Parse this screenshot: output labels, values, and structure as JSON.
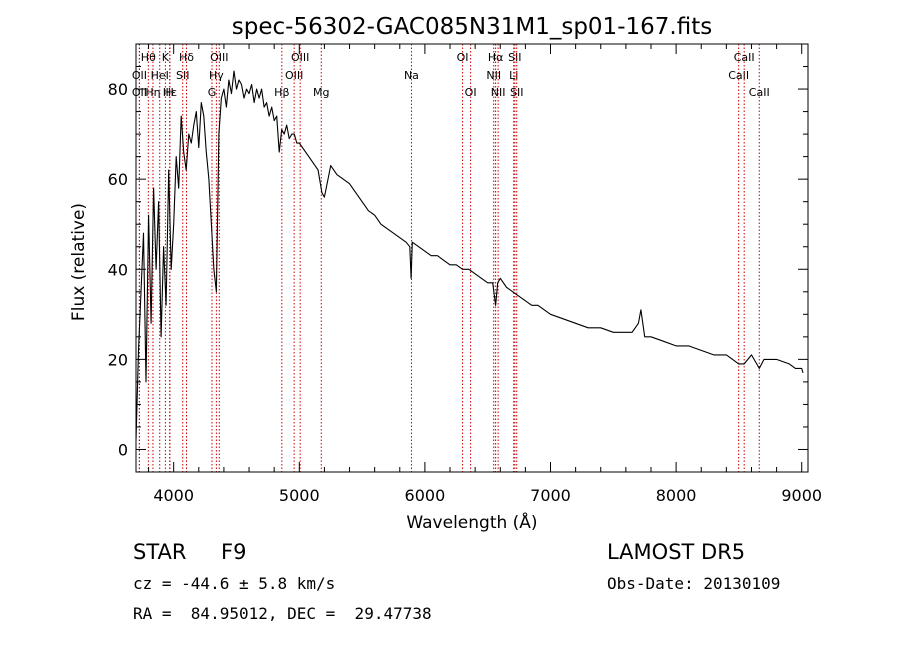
{
  "chart_data": {
    "type": "line",
    "title": "spec-56302-GAC085N31M1_sp01-167.fits",
    "xlabel": "Wavelength (Å)",
    "ylabel": "Flux (relative)",
    "xlim": [
      3700,
      9050
    ],
    "ylim": [
      -5,
      90
    ],
    "xticks": [
      4000,
      5000,
      6000,
      7000,
      8000,
      9000
    ],
    "yticks": [
      0,
      20,
      40,
      60,
      80
    ],
    "grid": false,
    "line_color": "#000000",
    "marker_color": "#cc0000",
    "series": [
      {
        "x": [
          3700,
          3720,
          3740,
          3760,
          3780,
          3800,
          3820,
          3840,
          3860,
          3880,
          3900,
          3920,
          3940,
          3960,
          3980,
          4000,
          4020,
          4040,
          4060,
          4080,
          4100,
          4120,
          4140,
          4160,
          4180,
          4200,
          4220,
          4240,
          4260,
          4280,
          4300,
          4320,
          4340,
          4360,
          4380,
          4400,
          4420,
          4440,
          4460,
          4480,
          4500,
          4520,
          4540,
          4560,
          4580,
          4600,
          4620,
          4640,
          4660,
          4680,
          4700,
          4720,
          4740,
          4760,
          4780,
          4800,
          4820,
          4840,
          4860,
          4880,
          4900,
          4920,
          4940,
          4960,
          4980,
          5000,
          5050,
          5100,
          5150,
          5180,
          5200,
          5250,
          5300,
          5350,
          5400,
          5450,
          5500,
          5550,
          5600,
          5650,
          5700,
          5750,
          5800,
          5850,
          5880,
          5890,
          5900,
          5950,
          6000,
          6050,
          6100,
          6150,
          6200,
          6250,
          6300,
          6350,
          6400,
          6450,
          6500,
          6540,
          6563,
          6580,
          6600,
          6650,
          6700,
          6750,
          6800,
          6850,
          6900,
          6950,
          7000,
          7100,
          7200,
          7300,
          7400,
          7500,
          7600,
          7650,
          7700,
          7720,
          7750,
          7800,
          7900,
          8000,
          8100,
          8200,
          8300,
          8400,
          8450,
          8498,
          8542,
          8600,
          8662,
          8700,
          8800,
          8900,
          8950,
          9000,
          9010
        ],
        "values": [
          2,
          22,
          35,
          48,
          15,
          52,
          28,
          58,
          40,
          55,
          25,
          45,
          32,
          62,
          40,
          50,
          65,
          58,
          74,
          66,
          62,
          70,
          68,
          72,
          75,
          67,
          77,
          74,
          66,
          60,
          50,
          40,
          35,
          70,
          78,
          80,
          76,
          82,
          79,
          84,
          80,
          82,
          81,
          78,
          80,
          79,
          81,
          77,
          80,
          78,
          80,
          76,
          77,
          74,
          76,
          73,
          74,
          66,
          71,
          70,
          72,
          69,
          70,
          70,
          68,
          68,
          66,
          64,
          62,
          57,
          56,
          63,
          61,
          60,
          59,
          57,
          55,
          53,
          52,
          50,
          49,
          48,
          47,
          46,
          45,
          38,
          46,
          45,
          44,
          43,
          43,
          42,
          41,
          41,
          40,
          40,
          39,
          38,
          37,
          37,
          32,
          37,
          38,
          36,
          35,
          34,
          33,
          32,
          32,
          31,
          30,
          29,
          28,
          27,
          27,
          26,
          26,
          26,
          28,
          31,
          25,
          25,
          24,
          23,
          23,
          22,
          21,
          21,
          20,
          19,
          19,
          21,
          18,
          20,
          20,
          19,
          18,
          18,
          17
        ],
        "name": ""
      }
    ],
    "line_markers": [
      {
        "x": 3798,
        "label": "Hθ",
        "row": 0
      },
      {
        "x": 3727,
        "label": "OII",
        "row": 1
      },
      {
        "x": 3727,
        "label": "OII",
        "row": 2
      },
      {
        "x": 3835,
        "label": "Hη",
        "row": 2
      },
      {
        "x": 3889,
        "label": "HeI",
        "row": 1
      },
      {
        "x": 3934,
        "label": "K",
        "row": 0
      },
      {
        "x": 3970,
        "label": "Hε",
        "row": 2
      },
      {
        "x": 3968,
        "label": "H",
        "row": 2
      },
      {
        "x": 4102,
        "label": "Hδ",
        "row": 0
      },
      {
        "x": 4072,
        "label": "SII",
        "row": 1
      },
      {
        "x": 4340,
        "label": "Hγ",
        "row": 1
      },
      {
        "x": 4305,
        "label": "G",
        "row": 2
      },
      {
        "x": 4363,
        "label": "OIII",
        "row": 0
      },
      {
        "x": 4861,
        "label": "Hβ",
        "row": 2
      },
      {
        "x": 4959,
        "label": "OIII",
        "row": 1
      },
      {
        "x": 5007,
        "label": "OIII",
        "row": 0
      },
      {
        "x": 5175,
        "label": "Mg",
        "row": 2
      },
      {
        "x": 5893,
        "label": "Na",
        "row": 1
      },
      {
        "x": 6300,
        "label": "OI",
        "row": 0
      },
      {
        "x": 6364,
        "label": "OI",
        "row": 2
      },
      {
        "x": 6548,
        "label": "NII",
        "row": 1
      },
      {
        "x": 6563,
        "label": "Hα",
        "row": 0
      },
      {
        "x": 6583,
        "label": "NII",
        "row": 2
      },
      {
        "x": 6707,
        "label": "Li",
        "row": 1
      },
      {
        "x": 6716,
        "label": "SII",
        "row": 0
      },
      {
        "x": 6731,
        "label": "SII",
        "row": 2
      },
      {
        "x": 8498,
        "label": "CaII",
        "row": 1
      },
      {
        "x": 8542,
        "label": "CaII",
        "row": 0
      },
      {
        "x": 8662,
        "label": "CaII",
        "row": 2
      }
    ]
  },
  "info": {
    "object_type": "STAR",
    "subclass": "F9",
    "cz": "cz = -44.6 ± 5.8 km/s",
    "coords": "RA =  84.95012, DEC =  29.47738",
    "survey": "LAMOST DR5",
    "obs_date": "Obs-Date: 20130109"
  }
}
